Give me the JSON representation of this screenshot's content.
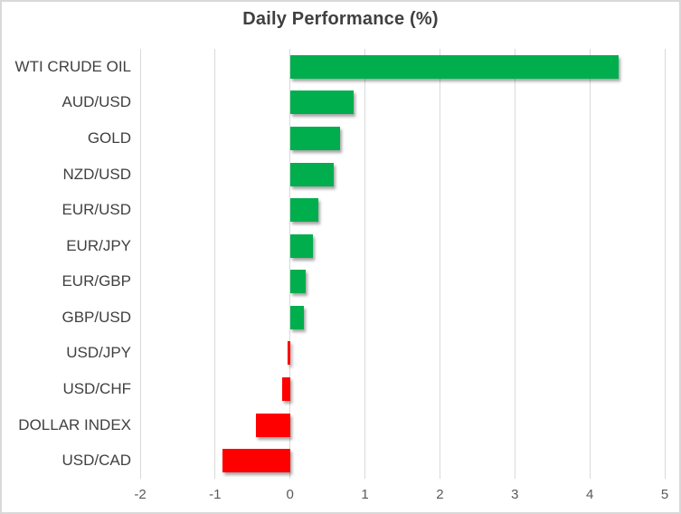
{
  "chart_data": {
    "type": "bar",
    "orientation": "horizontal",
    "title": "Daily Performance (%)",
    "categories": [
      "WTI CRUDE OIL",
      "AUD/USD",
      "GOLD",
      "NZD/USD",
      "EUR/USD",
      "EUR/JPY",
      "EUR/GBP",
      "GBP/USD",
      "USD/JPY",
      "USD/CHF",
      "DOLLAR INDEX",
      "USD/CAD"
    ],
    "values": [
      4.38,
      0.85,
      0.67,
      0.58,
      0.38,
      0.31,
      0.21,
      0.18,
      -0.03,
      -0.1,
      -0.46,
      -0.9
    ],
    "xlim": [
      -2,
      5
    ],
    "xticks": [
      "-2",
      "-1",
      "0",
      "1",
      "2",
      "3",
      "4",
      "5"
    ],
    "grid": true,
    "legend": "none",
    "colors": {
      "positive": "#00AE4D",
      "negative": "#FF0000",
      "gridline": "#D9D9D9",
      "border": "#D9D9D9",
      "title_text": "#404040",
      "category_text": "#404040",
      "tick_text": "#595959"
    }
  }
}
